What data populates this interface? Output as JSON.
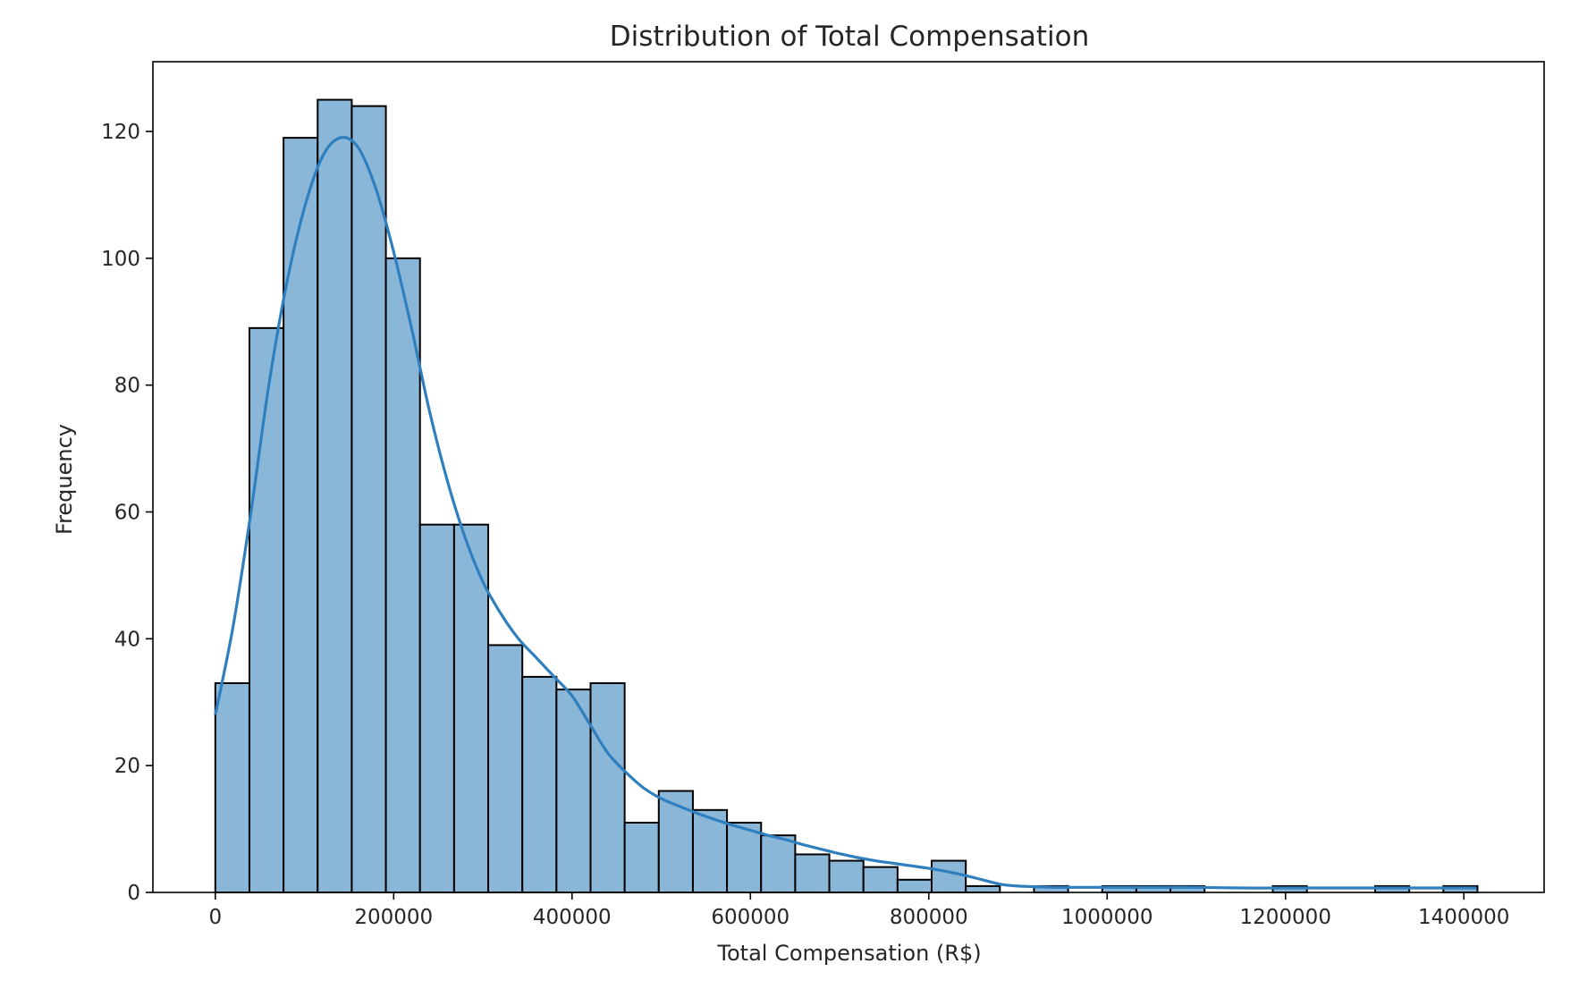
{
  "chart_data": {
    "type": "bar",
    "subtype": "histogram-with-kde",
    "title": "Distribution of Total Compensation",
    "xlabel": "Total Compensation (R$)",
    "ylabel": "Frequency",
    "xlim": [
      -70000,
      1490000
    ],
    "ylim": [
      0,
      131
    ],
    "xticks": [
      0,
      200000,
      400000,
      600000,
      800000,
      1000000,
      1200000,
      1400000
    ],
    "xtick_labels": [
      "0",
      "200000",
      "400000",
      "600000",
      "800000",
      "1000000",
      "1200000",
      "1400000"
    ],
    "yticks": [
      0,
      20,
      40,
      60,
      80,
      100,
      120
    ],
    "ytick_labels": [
      "0",
      "20",
      "40",
      "60",
      "80",
      "100",
      "120"
    ],
    "grid": false,
    "legend": "none",
    "bin_width": 38250,
    "bins_start": 0,
    "counts": [
      33,
      89,
      119,
      125,
      124,
      100,
      58,
      58,
      39,
      34,
      32,
      33,
      11,
      16,
      13,
      11,
      9,
      6,
      5,
      4,
      2,
      5,
      1,
      0,
      1,
      0,
      1,
      1,
      1,
      0,
      0,
      1,
      0,
      0,
      1,
      0,
      1
    ],
    "kde": {
      "x": [
        0,
        20000,
        40000,
        60000,
        80000,
        100000,
        120000,
        140000,
        160000,
        180000,
        200000,
        220000,
        240000,
        260000,
        280000,
        300000,
        320000,
        340000,
        360000,
        380000,
        400000,
        420000,
        440000,
        460000,
        480000,
        500000,
        520000,
        540000,
        560000,
        580000,
        600000,
        620000,
        640000,
        660000,
        680000,
        700000,
        720000,
        740000,
        760000,
        780000,
        800000,
        820000,
        840000,
        860000,
        880000,
        900000,
        920000,
        940000,
        960000,
        980000,
        1000000,
        1050000,
        1100000,
        1150000,
        1200000,
        1250000,
        1300000,
        1350000,
        1400000,
        1414000
      ],
      "y": [
        28,
        42,
        60,
        80,
        96,
        108,
        116,
        119,
        117.5,
        111,
        101,
        89,
        76,
        65,
        56,
        49,
        44,
        40,
        37,
        34,
        31,
        26.5,
        22,
        19,
        16.5,
        14.8,
        13.6,
        12.5,
        11.5,
        10.6,
        9.8,
        9,
        8.3,
        7.5,
        6.8,
        6.1,
        5.5,
        5,
        4.6,
        4.2,
        3.8,
        3.3,
        2.7,
        2,
        1.3,
        1,
        0.9,
        0.8,
        0.8,
        0.8,
        0.8,
        0.8,
        0.8,
        0.7,
        0.7,
        0.7,
        0.7,
        0.7,
        0.7,
        0.7
      ]
    },
    "colors": {
      "bar_fill": "#8ab6d8",
      "bar_edge": "#000000",
      "kde_line": "#2f7fbf",
      "axes": "#000000",
      "text": "#262626"
    }
  }
}
